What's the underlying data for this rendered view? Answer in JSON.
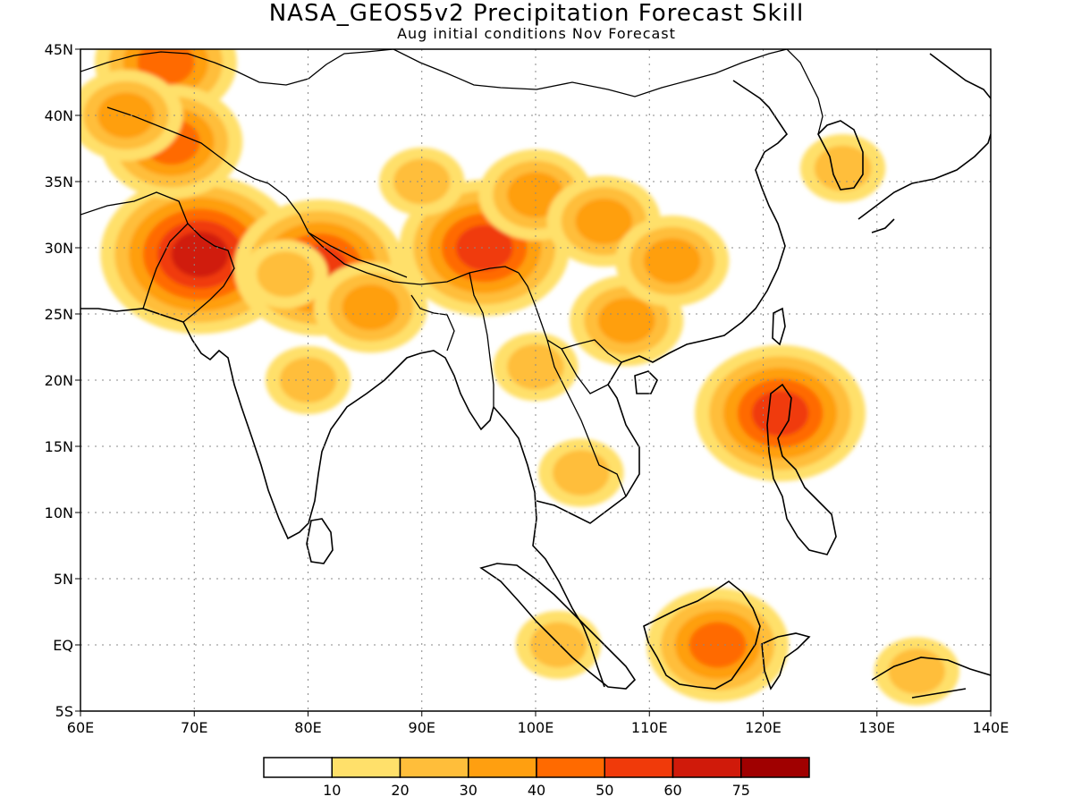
{
  "title": "NASA_GEOS5v2 Precipitation Forecast Skill",
  "subtitle": "Aug initial conditions   Nov Forecast",
  "map": {
    "lon_range": [
      60,
      140
    ],
    "lat_range": [
      -5,
      45
    ],
    "lon_ticks": [
      "60E",
      "70E",
      "80E",
      "90E",
      "100E",
      "110E",
      "120E",
      "130E",
      "140E"
    ],
    "lat_ticks": [
      "5S",
      "EQ",
      "5N",
      "10N",
      "15N",
      "20N",
      "25N",
      "30N",
      "35N",
      "40N",
      "45N"
    ],
    "grid": true,
    "grid_style": "dotted"
  },
  "colorbar": {
    "levels": [
      "10",
      "20",
      "30",
      "40",
      "50",
      "60",
      "75"
    ],
    "colors": [
      "#ffffff",
      "#ffe06a",
      "#ffbe3a",
      "#ff9f10",
      "#ff6a00",
      "#f03a0a",
      "#d01a0a",
      "#a00000"
    ]
  },
  "chart_data": {
    "type": "heatmap",
    "title": "NASA_GEOS5v2 Precipitation Forecast Skill",
    "subtitle": "Aug initial conditions   Nov Forecast",
    "xlim": [
      60,
      140
    ],
    "ylim": [
      -5,
      45
    ],
    "levels": [
      10,
      20,
      30,
      40,
      50,
      60,
      75
    ],
    "regions": [
      {
        "lon": 70.5,
        "lat": 29.5,
        "value": 60
      },
      {
        "lon": 67.5,
        "lat": 44,
        "value": 40
      },
      {
        "lon": 68,
        "lat": 38,
        "value": 40
      },
      {
        "lon": 64,
        "lat": 40,
        "value": 30
      },
      {
        "lon": 81,
        "lat": 28.5,
        "value": 50
      },
      {
        "lon": 95.5,
        "lat": 30,
        "value": 50
      },
      {
        "lon": 85.5,
        "lat": 25.5,
        "value": 30
      },
      {
        "lon": 100,
        "lat": 34,
        "value": 30
      },
      {
        "lon": 106,
        "lat": 32,
        "value": 30
      },
      {
        "lon": 108,
        "lat": 24.5,
        "value": 30
      },
      {
        "lon": 112,
        "lat": 29,
        "value": 30
      },
      {
        "lon": 80,
        "lat": 20,
        "value": 20
      },
      {
        "lon": 100,
        "lat": 21,
        "value": 20
      },
      {
        "lon": 104,
        "lat": 13,
        "value": 20
      },
      {
        "lon": 116,
        "lat": 0,
        "value": 40
      },
      {
        "lon": 121.5,
        "lat": 17.5,
        "value": 50
      },
      {
        "lon": 127,
        "lat": 36,
        "value": 20
      },
      {
        "lon": 102,
        "lat": 0,
        "value": 20
      },
      {
        "lon": 133.5,
        "lat": -2,
        "value": 20
      },
      {
        "lon": 90,
        "lat": 35,
        "value": 20
      },
      {
        "lon": 78,
        "lat": 28,
        "value": 20
      }
    ]
  }
}
